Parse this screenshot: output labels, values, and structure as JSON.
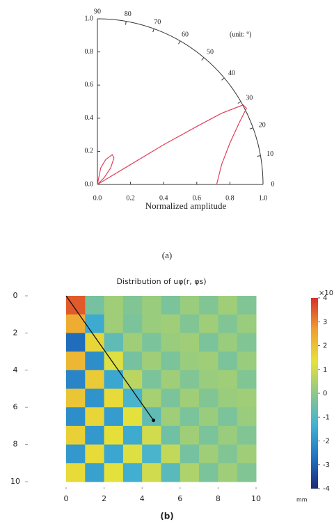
{
  "chart_data": [
    {
      "type": "polar",
      "x_label": "Normalized amplitude",
      "annotation": "(unit: °)",
      "panel_label": "(a)",
      "xlim": [
        0,
        1
      ],
      "ylim": [
        0,
        1
      ],
      "xticks": [
        {
          "value": 0,
          "label": "0.0"
        },
        0.2,
        0.4,
        0.6,
        0.8,
        {
          "value": 1,
          "label": "1.0"
        }
      ],
      "yticks": [
        {
          "value": 0,
          "label": "0.0"
        },
        0.2,
        0.4,
        0.6,
        0.8,
        {
          "value": 1,
          "label": "1.0"
        }
      ],
      "thetaticks": [
        0,
        10,
        20,
        30,
        40,
        50,
        60,
        70,
        80,
        90
      ],
      "series": [
        {
          "color": "#e0405a",
          "x": [
            0,
            0.02,
            0.05,
            0.09,
            0.1,
            0.08,
            0.04,
            0.01,
            0,
            null,
            0,
            0.2,
            0.4,
            0.6,
            0.75,
            0.88,
            0.9,
            0.86,
            0.8,
            0.75,
            0.72
          ],
          "values": [
            0,
            0.1,
            0.15,
            0.18,
            0.16,
            0.1,
            0.04,
            0.01,
            0,
            null,
            0,
            0.12,
            0.24,
            0.35,
            0.43,
            0.48,
            0.46,
            0.38,
            0.25,
            0.12,
            0
          ]
        }
      ]
    },
    {
      "type": "heatmap",
      "title": "Distribution of uφ(r, φs)",
      "panel_label": "(b)",
      "x_unit": "mm",
      "colorbar_label": "×10",
      "xlim": [
        0,
        10
      ],
      "ylim": [
        0,
        10
      ],
      "y_inverted": true,
      "xticks": [
        0,
        2,
        4,
        6,
        8,
        10
      ],
      "yticks": [
        0,
        2,
        4,
        6,
        8,
        10
      ],
      "zlim": [
        -4,
        4
      ],
      "zticks": [
        4,
        3,
        2,
        1,
        0,
        -1,
        -2,
        -3,
        -4
      ],
      "colorscale": [
        "#1c2a78",
        "#1f74c4",
        "#42b2d2",
        "#8cc88a",
        "#e6e23a",
        "#f0a030",
        "#d8302a"
      ],
      "z": [
        [
          3.5,
          -0.4,
          0.3,
          -0.2,
          0.2,
          -0.3,
          0.2,
          -0.2,
          0.3,
          -0.2
        ],
        [
          2.4,
          -1.5,
          0.3,
          -0.3,
          0.2,
          0.3,
          -0.2,
          0.3,
          -0.2,
          0.2
        ],
        [
          -2.8,
          1.6,
          -0.8,
          0.3,
          -0.3,
          0.2,
          0.3,
          -0.3,
          0.2,
          -0.2
        ],
        [
          2.2,
          -2.1,
          1.2,
          -0.4,
          0.3,
          -0.3,
          0.2,
          0.3,
          -0.3,
          0.2
        ],
        [
          -2.3,
          1.8,
          -1.6,
          0.7,
          -0.3,
          0.3,
          -0.2,
          0.2,
          0.3,
          -0.2
        ],
        [
          1.9,
          -2.0,
          1.5,
          -1.2,
          0.4,
          -0.3,
          0.3,
          -0.2,
          0.2,
          0.3
        ],
        [
          -2.1,
          1.6,
          -1.8,
          1.3,
          -0.8,
          0.3,
          -0.3,
          0.2,
          -0.3,
          0.2
        ],
        [
          1.7,
          -1.9,
          1.4,
          -1.5,
          1.0,
          -0.5,
          0.3,
          -0.3,
          0.2,
          -0.2
        ],
        [
          -1.9,
          1.5,
          -1.6,
          1.2,
          -1.2,
          0.8,
          -0.4,
          0.3,
          -0.2,
          0.3
        ],
        [
          1.5,
          -1.7,
          1.3,
          -1.4,
          1.0,
          -0.9,
          0.5,
          -0.3,
          0.3,
          -0.2
        ]
      ],
      "line": {
        "color": "#111111",
        "x": [
          0,
          4.6
        ],
        "y": [
          0,
          6.7
        ]
      }
    }
  ]
}
